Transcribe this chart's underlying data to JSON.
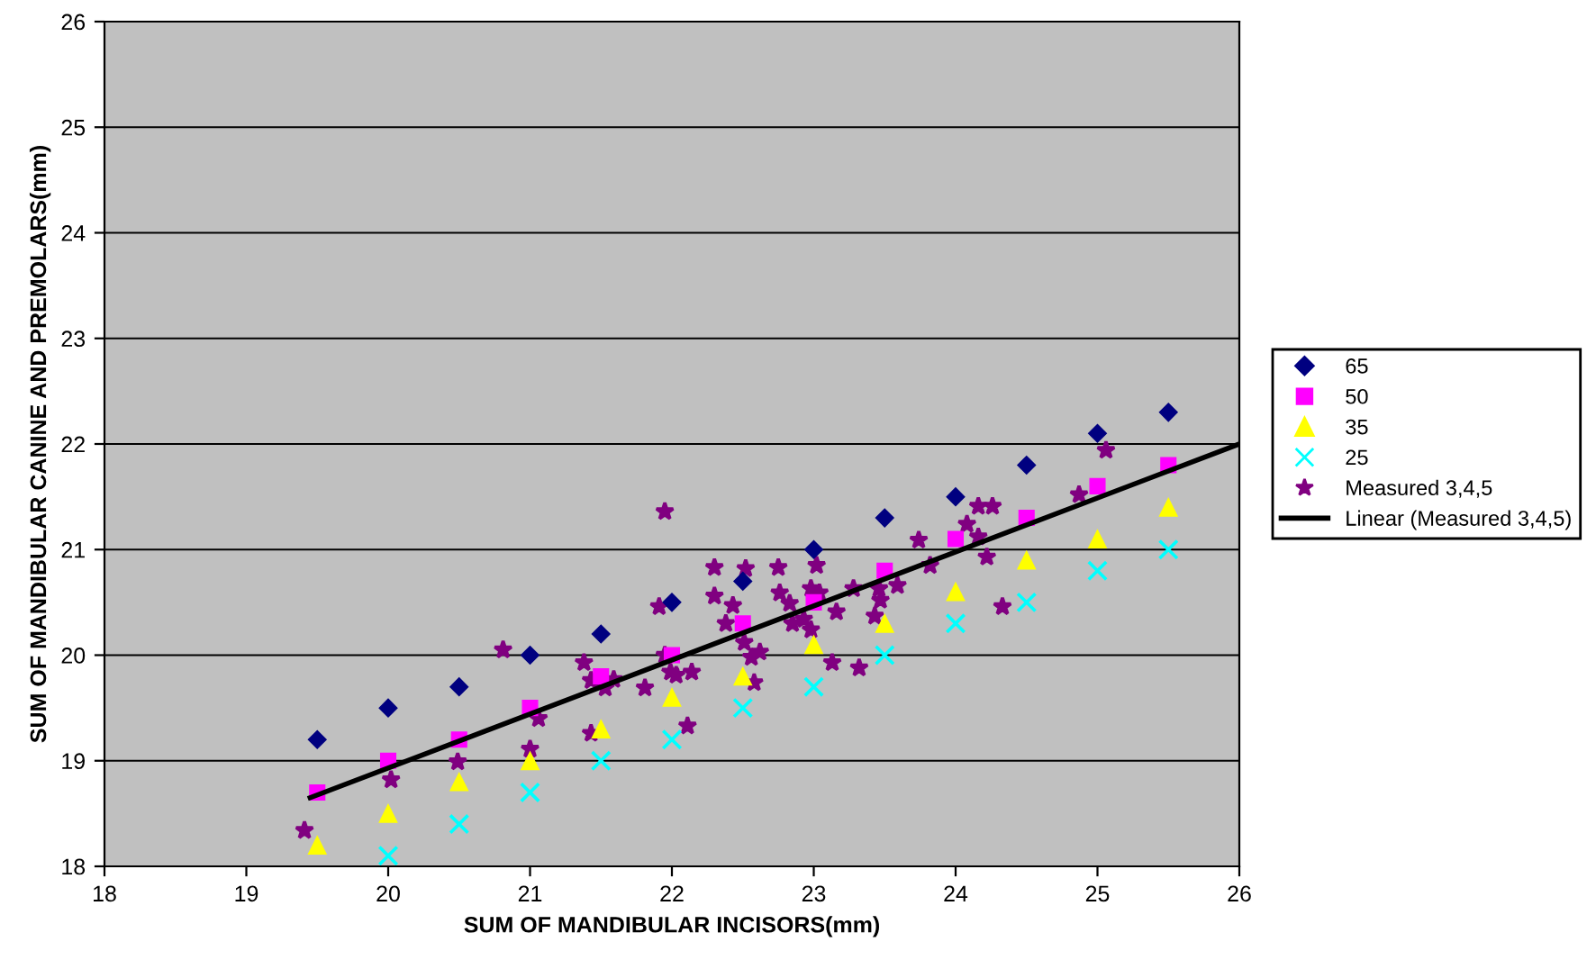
{
  "chart_data": {
    "type": "scatter",
    "xlabel": "SUM OF MANDIBULAR INCISORS(mm)",
    "ylabel": "SUM OF MANDIBULAR CANINE AND PREMOLARS(mm)",
    "xlim": [
      18,
      26
    ],
    "ylim": [
      18,
      26
    ],
    "xticks": [
      18,
      19,
      20,
      21,
      22,
      23,
      24,
      25,
      26
    ],
    "yticks": [
      18,
      19,
      20,
      21,
      22,
      23,
      24,
      25,
      26
    ],
    "grid": "y",
    "legend": "right",
    "series": [
      {
        "name": "65",
        "color": "#000080",
        "marker": "diamond",
        "x": [
          19.5,
          20,
          20.5,
          21,
          21.5,
          22,
          22.5,
          23,
          23.5,
          24,
          24.5,
          25,
          25.5
        ],
        "values": [
          19.2,
          19.5,
          19.7,
          20.0,
          20.2,
          20.5,
          20.7,
          21.0,
          21.3,
          21.5,
          21.8,
          22.1,
          22.3
        ]
      },
      {
        "name": "50",
        "color": "#ff00ff",
        "marker": "square",
        "x": [
          19.5,
          20,
          20.5,
          21,
          21.5,
          22,
          22.5,
          23,
          23.5,
          24,
          24.5,
          25,
          25.5
        ],
        "values": [
          18.7,
          19.0,
          19.2,
          19.5,
          19.8,
          20.0,
          20.3,
          20.5,
          20.8,
          21.1,
          21.3,
          21.6,
          21.8
        ]
      },
      {
        "name": "35",
        "color": "#ffff00",
        "marker": "triangle",
        "x": [
          19.5,
          20,
          20.5,
          21,
          21.5,
          22,
          22.5,
          23,
          23.5,
          24,
          24.5,
          25,
          25.5
        ],
        "values": [
          18.2,
          18.5,
          18.8,
          19.0,
          19.3,
          19.6,
          19.8,
          20.1,
          20.3,
          20.6,
          20.9,
          21.1,
          21.4
        ]
      },
      {
        "name": "25",
        "color": "#00ffff",
        "marker": "cross",
        "x": [
          20,
          20.5,
          21,
          21.5,
          22,
          22.5,
          23,
          23.5,
          24,
          24.5,
          25,
          25.5
        ],
        "values": [
          18.1,
          18.4,
          18.7,
          19.0,
          19.2,
          19.5,
          19.7,
          20.0,
          20.3,
          20.5,
          20.8,
          21.0
        ]
      },
      {
        "name": "Measured 3,4,5",
        "color": "#800080",
        "marker": "star",
        "x": [
          19.41,
          20.02,
          20.49,
          21.0,
          21.06,
          20.81,
          21.43,
          21.38,
          21.43,
          21.53,
          21.59,
          21.81,
          21.95,
          21.91,
          21.95,
          21.99,
          22.03,
          22.14,
          22.11,
          22.3,
          22.3,
          22.43,
          22.38,
          22.52,
          22.51,
          22.56,
          22.75,
          23.02,
          22.76,
          22.83,
          22.98,
          23.04,
          22.85,
          22.93,
          22.98,
          23.16,
          23.28,
          23.46,
          23.59,
          23.47,
          23.43,
          22.62,
          22.58,
          23.13,
          23.32,
          23.74,
          23.82,
          24.08,
          24.16,
          24.26,
          24.16,
          24.22,
          24.33,
          24.87,
          25.06
        ],
        "values": [
          18.34,
          18.82,
          18.99,
          19.11,
          19.4,
          20.05,
          19.26,
          19.93,
          19.76,
          19.69,
          19.77,
          19.69,
          21.36,
          20.46,
          20.0,
          19.84,
          19.81,
          19.84,
          19.33,
          20.83,
          20.56,
          20.47,
          20.3,
          20.82,
          20.12,
          19.98,
          20.83,
          20.85,
          20.59,
          20.49,
          20.63,
          20.59,
          20.3,
          20.34,
          20.24,
          20.41,
          20.63,
          20.63,
          20.66,
          20.52,
          20.37,
          20.03,
          19.74,
          19.93,
          19.88,
          21.09,
          20.85,
          21.24,
          21.41,
          21.41,
          21.12,
          20.93,
          20.46,
          21.52,
          21.94
        ]
      },
      {
        "name": "Linear (Measured 3,4,5)",
        "type": "line",
        "color": "#000000",
        "marker": "none",
        "line_style": "solid",
        "x": [
          19.45,
          26
        ],
        "values": [
          18.65,
          22.0
        ]
      }
    ]
  }
}
